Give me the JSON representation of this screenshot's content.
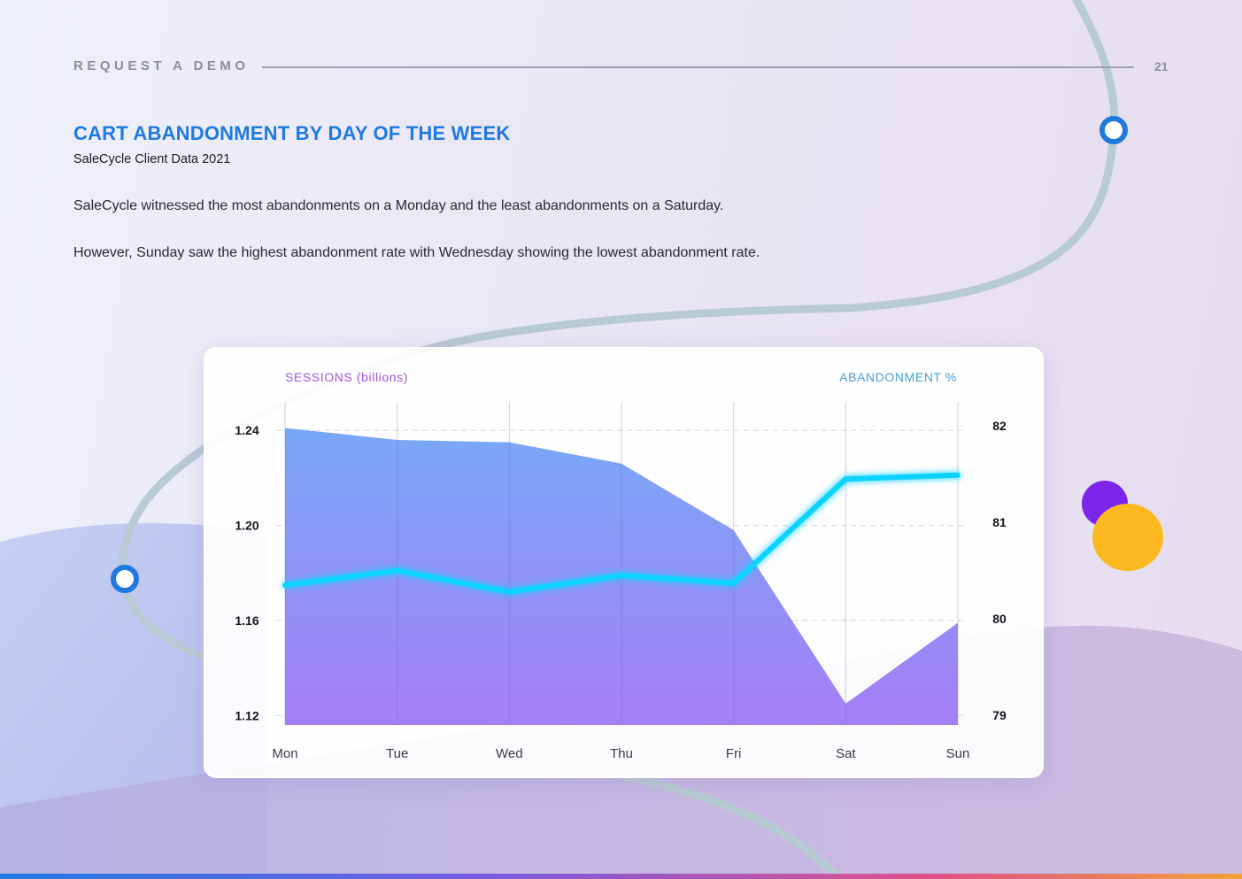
{
  "header": {
    "link_label": "REQUEST A DEMO",
    "page_number": "21"
  },
  "section": {
    "title": "CART ABANDONMENT BY DAY OF THE WEEK",
    "subtitle": "SaleCycle Client Data 2021",
    "paragraph_1": "SaleCycle witnessed the most abandonments on a Monday and the least abandonments on a Saturday.",
    "paragraph_2": "However, Sunday saw the highest abandonment rate with Wednesday showing the lowest abandonment rate."
  },
  "colors": {
    "accent_blue": "#1f7ae0",
    "area_top": "#78a8f6",
    "area_bottom": "#a57ef6",
    "line": "#0cd2ff",
    "dot_purple": "#7b25ec",
    "dot_yellow": "#fbb91f"
  },
  "chart_data": {
    "type": "area",
    "title": "",
    "categories": [
      "Mon",
      "Tue",
      "Wed",
      "Thu",
      "Fri",
      "Sat",
      "Sun"
    ],
    "left_axis": {
      "label": "SESSIONS (billions)",
      "ticks": [
        "1.24",
        "1.20",
        "1.16",
        "1.12"
      ],
      "tick_values": [
        1.24,
        1.2,
        1.16,
        1.12
      ],
      "ylim": [
        1.116,
        1.252
      ]
    },
    "right_axis": {
      "label": "ABANDONMENT %",
      "ticks": [
        "82",
        "81",
        "80",
        "79"
      ],
      "tick_values": [
        82,
        81,
        80,
        79
      ],
      "ylim": [
        78.9,
        82.25
      ]
    },
    "series": [
      {
        "name": "Sessions",
        "type": "area",
        "axis": "left",
        "values": [
          1.241,
          1.236,
          1.235,
          1.226,
          1.198,
          1.125,
          1.159
        ]
      },
      {
        "name": "Abandonment %",
        "type": "line",
        "axis": "right",
        "values": [
          80.35,
          80.5,
          80.28,
          80.45,
          80.37,
          81.45,
          81.49
        ]
      }
    ]
  }
}
